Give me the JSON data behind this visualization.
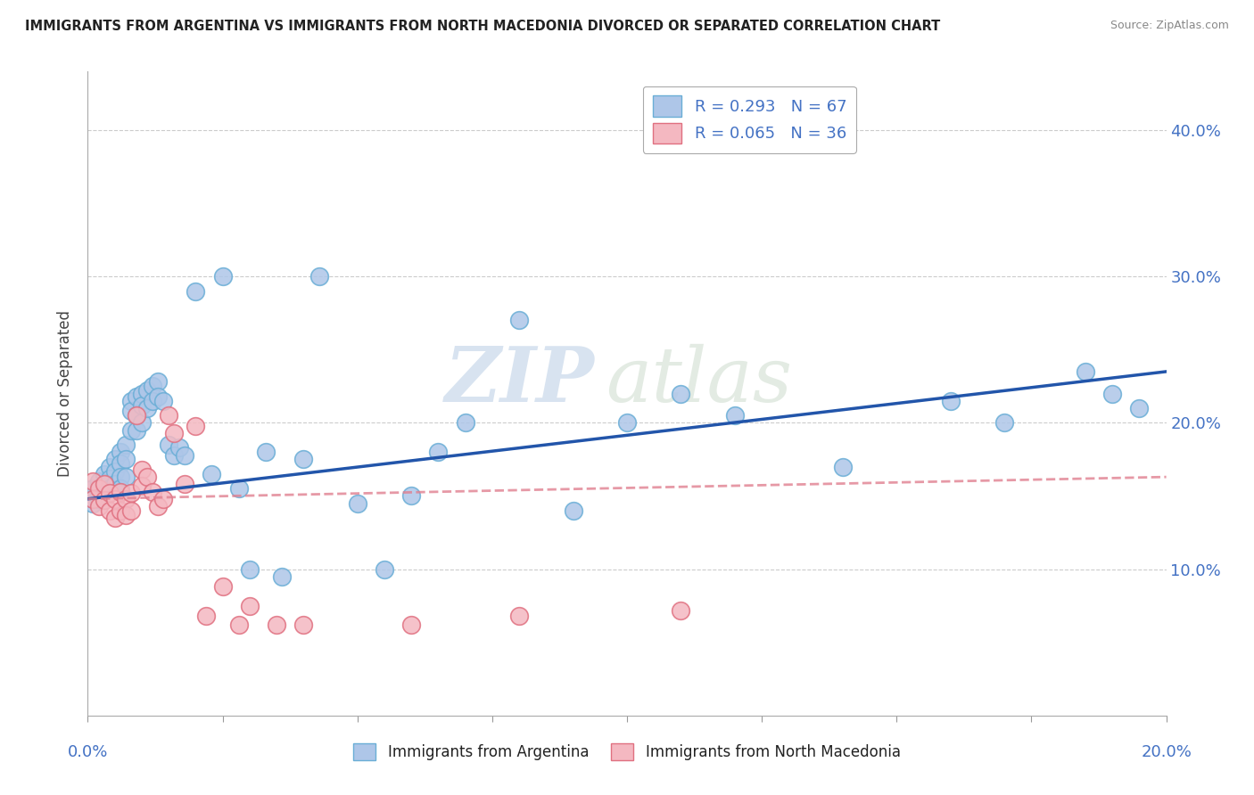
{
  "title": "IMMIGRANTS FROM ARGENTINA VS IMMIGRANTS FROM NORTH MACEDONIA DIVORCED OR SEPARATED CORRELATION CHART",
  "source": "Source: ZipAtlas.com",
  "ylabel": "Divorced or Separated",
  "yticks": [
    "10.0%",
    "20.0%",
    "30.0%",
    "40.0%"
  ],
  "ytick_vals": [
    0.1,
    0.2,
    0.3,
    0.4
  ],
  "xlim": [
    0.0,
    0.2
  ],
  "ylim": [
    0.0,
    0.44
  ],
  "argentina_color": "#aec6e8",
  "argentina_edge": "#6aaed6",
  "macedonia_color": "#f4b8c1",
  "macedonia_edge": "#e07080",
  "legend1_label": "R = 0.293   N = 67",
  "legend2_label": "R = 0.065   N = 36",
  "watermark_zip": "ZIP",
  "watermark_atlas": "atlas",
  "bg_color": "#ffffff",
  "grid_color": "#cccccc",
  "tick_color": "#4472c4",
  "regression_argentina_color": "#2255aa",
  "regression_macedonia_color": "#e08090",
  "scatter_argentina_x": [
    0.001,
    0.001,
    0.001,
    0.002,
    0.002,
    0.002,
    0.003,
    0.003,
    0.003,
    0.004,
    0.004,
    0.004,
    0.005,
    0.005,
    0.005,
    0.006,
    0.006,
    0.006,
    0.006,
    0.007,
    0.007,
    0.007,
    0.008,
    0.008,
    0.008,
    0.009,
    0.009,
    0.009,
    0.01,
    0.01,
    0.01,
    0.011,
    0.011,
    0.012,
    0.012,
    0.013,
    0.013,
    0.014,
    0.015,
    0.016,
    0.017,
    0.018,
    0.02,
    0.023,
    0.025,
    0.028,
    0.03,
    0.033,
    0.036,
    0.04,
    0.043,
    0.05,
    0.055,
    0.06,
    0.065,
    0.07,
    0.08,
    0.09,
    0.1,
    0.11,
    0.12,
    0.14,
    0.16,
    0.17,
    0.185,
    0.19,
    0.195
  ],
  "scatter_argentina_y": [
    0.155,
    0.148,
    0.145,
    0.16,
    0.152,
    0.148,
    0.165,
    0.157,
    0.15,
    0.17,
    0.162,
    0.155,
    0.175,
    0.167,
    0.158,
    0.18,
    0.172,
    0.163,
    0.155,
    0.185,
    0.175,
    0.163,
    0.215,
    0.208,
    0.195,
    0.218,
    0.205,
    0.195,
    0.22,
    0.212,
    0.2,
    0.222,
    0.21,
    0.225,
    0.215,
    0.228,
    0.218,
    0.215,
    0.185,
    0.178,
    0.183,
    0.178,
    0.29,
    0.165,
    0.3,
    0.155,
    0.1,
    0.18,
    0.095,
    0.175,
    0.3,
    0.145,
    0.1,
    0.15,
    0.18,
    0.2,
    0.27,
    0.14,
    0.2,
    0.22,
    0.205,
    0.17,
    0.215,
    0.2,
    0.235,
    0.22,
    0.21
  ],
  "scatter_macedonia_x": [
    0.001,
    0.001,
    0.002,
    0.002,
    0.003,
    0.003,
    0.004,
    0.004,
    0.005,
    0.005,
    0.006,
    0.006,
    0.007,
    0.007,
    0.008,
    0.008,
    0.009,
    0.01,
    0.01,
    0.011,
    0.012,
    0.013,
    0.014,
    0.015,
    0.016,
    0.018,
    0.02,
    0.022,
    0.025,
    0.028,
    0.03,
    0.035,
    0.04,
    0.06,
    0.08,
    0.11
  ],
  "scatter_macedonia_y": [
    0.16,
    0.148,
    0.155,
    0.143,
    0.158,
    0.147,
    0.152,
    0.14,
    0.148,
    0.135,
    0.153,
    0.14,
    0.148,
    0.137,
    0.152,
    0.14,
    0.205,
    0.168,
    0.157,
    0.163,
    0.153,
    0.143,
    0.148,
    0.205,
    0.193,
    0.158,
    0.198,
    0.068,
    0.088,
    0.062,
    0.075,
    0.062,
    0.062,
    0.062,
    0.068,
    0.072
  ],
  "regline_arg_x0": 0.0,
  "regline_arg_y0": 0.148,
  "regline_arg_x1": 0.2,
  "regline_arg_y1": 0.235,
  "regline_mac_x0": 0.0,
  "regline_mac_y0": 0.148,
  "regline_mac_x1": 0.2,
  "regline_mac_y1": 0.163
}
